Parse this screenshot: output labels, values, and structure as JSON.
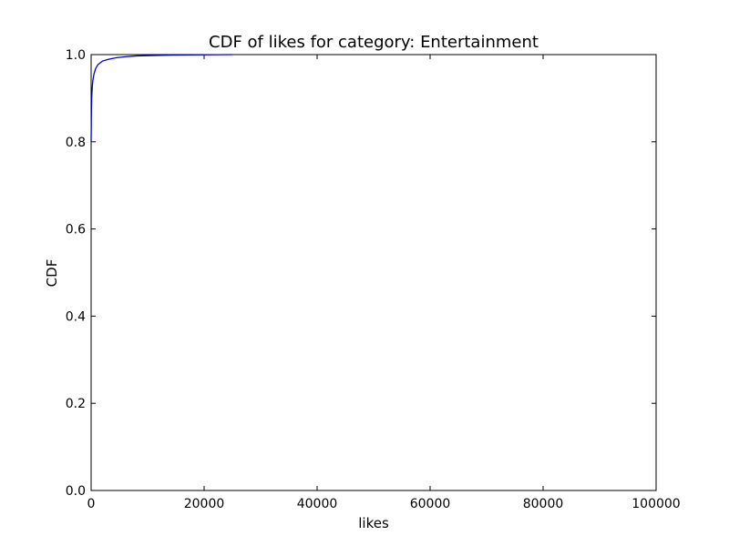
{
  "chart_data": {
    "type": "line",
    "title": "CDF of likes for category: Entertainment",
    "xlabel": "likes",
    "ylabel": "CDF",
    "xlim": [
      0,
      100000
    ],
    "ylim": [
      0.0,
      1.0
    ],
    "x_ticks": [
      0,
      20000,
      40000,
      60000,
      80000,
      100000
    ],
    "x_tick_labels": [
      "0",
      "20000",
      "40000",
      "60000",
      "80000",
      "100000"
    ],
    "y_ticks": [
      0.0,
      0.2,
      0.4,
      0.6,
      0.8,
      1.0
    ],
    "y_tick_labels": [
      "0.0",
      "0.2",
      "0.4",
      "0.6",
      "0.8",
      "1.0"
    ],
    "grid": false,
    "line_color": "#0000cc",
    "series": [
      {
        "x": [
          0,
          50,
          100,
          200,
          300,
          500,
          800,
          1200,
          2000,
          3000,
          4500,
          6000,
          8000,
          11000,
          15000,
          20000,
          25000
        ],
        "y": [
          0.8,
          0.87,
          0.9,
          0.925,
          0.94,
          0.955,
          0.968,
          0.977,
          0.985,
          0.989,
          0.993,
          0.995,
          0.997,
          0.998,
          0.999,
          0.9995,
          1.0
        ]
      }
    ]
  }
}
